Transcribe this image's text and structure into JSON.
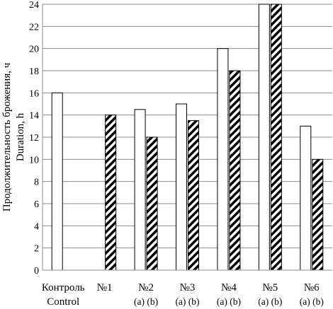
{
  "chart_data": {
    "type": "bar",
    "ylabel_ru": "Продолжительность брожения, ч",
    "ylabel_en": "Duration, h",
    "ylim": [
      0,
      24
    ],
    "yticks": [
      0,
      2,
      4,
      6,
      8,
      10,
      12,
      14,
      16,
      18,
      20,
      22,
      24
    ],
    "grid": true,
    "categories": [
      {
        "label": "Контроль",
        "label2": "Control",
        "sub": ""
      },
      {
        "label": "№1",
        "label2": "",
        "sub": ""
      },
      {
        "label": "№2",
        "label2": "",
        "sub": "(a) (b)"
      },
      {
        "label": "№3",
        "label2": "",
        "sub": "(a) (b)"
      },
      {
        "label": "№4",
        "label2": "",
        "sub": "(a) (b)"
      },
      {
        "label": "№5",
        "label2": "",
        "sub": "(a) (b)"
      },
      {
        "label": "№6",
        "label2": "",
        "sub": "(a) (b)"
      }
    ],
    "series": [
      {
        "pattern": "white",
        "values": [
          16,
          null,
          14.5,
          15,
          20,
          24,
          13
        ]
      },
      {
        "pattern": "hatched",
        "values": [
          null,
          14,
          12,
          13.5,
          18,
          24,
          10
        ]
      }
    ]
  }
}
